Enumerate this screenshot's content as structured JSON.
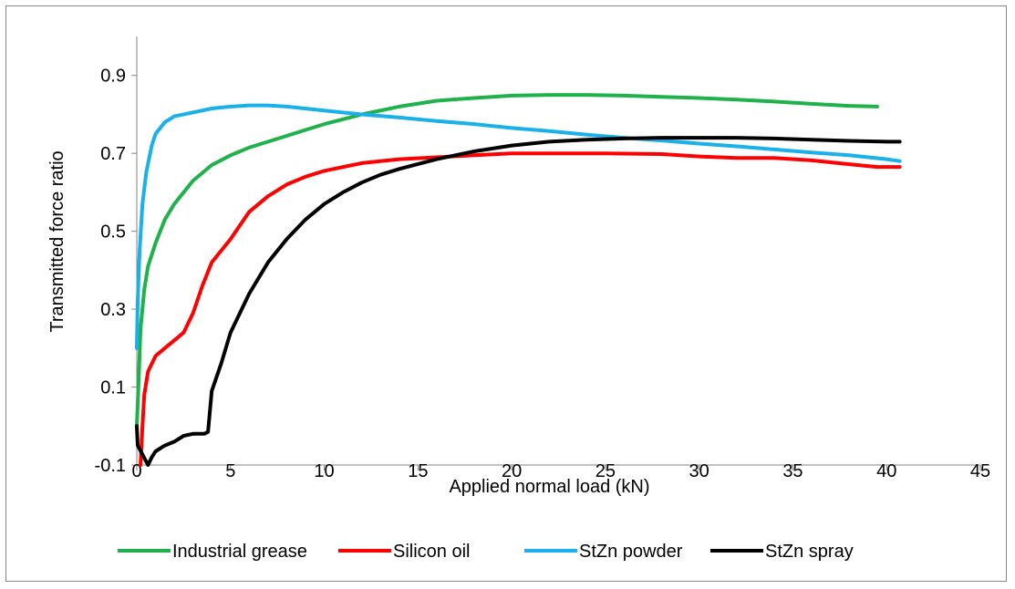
{
  "chart_data": {
    "type": "line",
    "title": "",
    "xlabel": "Applied normal load (kN)",
    "ylabel": "Transmitted force ratio",
    "xlim": [
      0,
      45
    ],
    "ylim": [
      -0.1,
      1.0
    ],
    "xticks": [
      0,
      5,
      10,
      15,
      20,
      25,
      30,
      35,
      40,
      45
    ],
    "yticks": [
      -0.1,
      0.1,
      0.3,
      0.5,
      0.7,
      0.9
    ],
    "xtick_labels": [
      "0",
      "5",
      "10",
      "15",
      "20",
      "25",
      "30",
      "35",
      "40",
      "45"
    ],
    "ytick_labels": [
      "-0.1",
      "0.1",
      "0.3",
      "0.5",
      "0.7",
      "0.9"
    ],
    "grid": false,
    "legend_position": "bottom",
    "series": [
      {
        "name": "Industrial grease",
        "color": "#1fb24a",
        "points": [
          [
            0,
            0.0
          ],
          [
            0.1,
            0.12
          ],
          [
            0.2,
            0.25
          ],
          [
            0.4,
            0.35
          ],
          [
            0.6,
            0.41
          ],
          [
            1,
            0.47
          ],
          [
            1.5,
            0.53
          ],
          [
            2,
            0.57
          ],
          [
            3,
            0.63
          ],
          [
            4,
            0.67
          ],
          [
            5,
            0.695
          ],
          [
            6,
            0.715
          ],
          [
            7,
            0.73
          ],
          [
            8,
            0.745
          ],
          [
            9,
            0.76
          ],
          [
            10,
            0.775
          ],
          [
            12,
            0.8
          ],
          [
            14,
            0.82
          ],
          [
            16,
            0.835
          ],
          [
            18,
            0.842
          ],
          [
            20,
            0.848
          ],
          [
            22,
            0.85
          ],
          [
            24,
            0.85
          ],
          [
            26,
            0.848
          ],
          [
            28,
            0.845
          ],
          [
            30,
            0.842
          ],
          [
            32,
            0.838
          ],
          [
            34,
            0.833
          ],
          [
            36,
            0.827
          ],
          [
            38,
            0.822
          ],
          [
            39.5,
            0.82
          ]
        ]
      },
      {
        "name": "Silicon oil",
        "color": "#ff0000",
        "points": [
          [
            0.2,
            -0.1
          ],
          [
            0.3,
            0.0
          ],
          [
            0.4,
            0.08
          ],
          [
            0.6,
            0.14
          ],
          [
            1,
            0.18
          ],
          [
            1.5,
            0.2
          ],
          [
            2,
            0.22
          ],
          [
            2.5,
            0.24
          ],
          [
            3,
            0.29
          ],
          [
            3.5,
            0.36
          ],
          [
            4,
            0.42
          ],
          [
            5,
            0.48
          ],
          [
            6,
            0.55
          ],
          [
            7,
            0.59
          ],
          [
            8,
            0.62
          ],
          [
            9,
            0.64
          ],
          [
            10,
            0.655
          ],
          [
            12,
            0.675
          ],
          [
            14,
            0.685
          ],
          [
            16,
            0.69
          ],
          [
            18,
            0.695
          ],
          [
            20,
            0.7
          ],
          [
            22,
            0.7
          ],
          [
            25,
            0.7
          ],
          [
            28,
            0.698
          ],
          [
            30,
            0.692
          ],
          [
            32,
            0.688
          ],
          [
            34,
            0.688
          ],
          [
            36,
            0.682
          ],
          [
            38,
            0.672
          ],
          [
            39.5,
            0.665
          ],
          [
            40.7,
            0.665
          ]
        ]
      },
      {
        "name": "StZn powder",
        "color": "#1ab1ea",
        "points": [
          [
            0,
            0.2
          ],
          [
            0.05,
            0.32
          ],
          [
            0.15,
            0.45
          ],
          [
            0.3,
            0.57
          ],
          [
            0.5,
            0.65
          ],
          [
            0.8,
            0.72
          ],
          [
            1,
            0.75
          ],
          [
            1.5,
            0.78
          ],
          [
            2,
            0.795
          ],
          [
            3,
            0.805
          ],
          [
            4,
            0.815
          ],
          [
            5,
            0.82
          ],
          [
            6,
            0.823
          ],
          [
            7,
            0.823
          ],
          [
            8,
            0.82
          ],
          [
            10,
            0.81
          ],
          [
            12,
            0.8
          ],
          [
            14,
            0.792
          ],
          [
            16,
            0.783
          ],
          [
            18,
            0.775
          ],
          [
            20,
            0.765
          ],
          [
            22,
            0.757
          ],
          [
            24,
            0.748
          ],
          [
            26,
            0.74
          ],
          [
            28,
            0.733
          ],
          [
            30,
            0.725
          ],
          [
            32,
            0.718
          ],
          [
            34,
            0.71
          ],
          [
            36,
            0.702
          ],
          [
            38,
            0.695
          ],
          [
            40,
            0.685
          ],
          [
            40.7,
            0.68
          ]
        ]
      },
      {
        "name": "StZn spray",
        "color": "#000000",
        "points": [
          [
            0,
            0.0
          ],
          [
            0.05,
            -0.05
          ],
          [
            0.6,
            -0.1
          ],
          [
            0.8,
            -0.08
          ],
          [
            1,
            -0.065
          ],
          [
            1.5,
            -0.05
          ],
          [
            2,
            -0.04
          ],
          [
            2.5,
            -0.025
          ],
          [
            3,
            -0.02
          ],
          [
            3.6,
            -0.02
          ],
          [
            3.8,
            -0.015
          ],
          [
            4,
            0.09
          ],
          [
            4.5,
            0.16
          ],
          [
            5,
            0.24
          ],
          [
            6,
            0.34
          ],
          [
            7,
            0.42
          ],
          [
            8,
            0.48
          ],
          [
            9,
            0.53
          ],
          [
            10,
            0.57
          ],
          [
            11,
            0.6
          ],
          [
            12,
            0.625
          ],
          [
            13,
            0.645
          ],
          [
            14,
            0.66
          ],
          [
            16,
            0.685
          ],
          [
            18,
            0.705
          ],
          [
            20,
            0.72
          ],
          [
            22,
            0.73
          ],
          [
            24,
            0.735
          ],
          [
            26,
            0.738
          ],
          [
            28,
            0.74
          ],
          [
            30,
            0.74
          ],
          [
            32,
            0.74
          ],
          [
            34,
            0.738
          ],
          [
            36,
            0.735
          ],
          [
            38,
            0.732
          ],
          [
            40,
            0.73
          ],
          [
            40.7,
            0.73
          ]
        ]
      }
    ]
  }
}
